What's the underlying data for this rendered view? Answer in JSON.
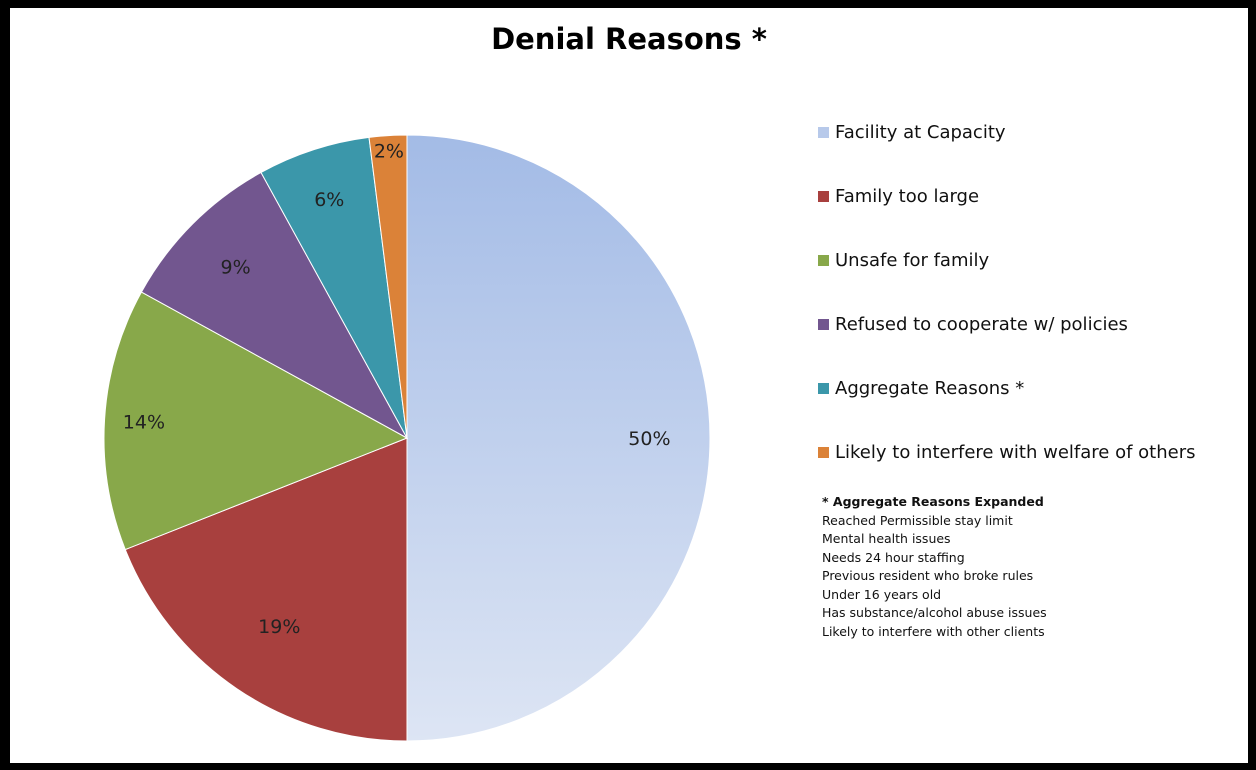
{
  "chart_data": {
    "type": "pie",
    "title": "Denial Reasons *",
    "categories": [
      "Facility at Capacity",
      "Family too large",
      "Unsafe for family",
      "Refused to cooperate w/ policies",
      "Aggregate Reasons *",
      "Likely to interfere with welfare of others"
    ],
    "values": [
      50,
      19,
      14,
      9,
      6,
      2
    ],
    "data_labels": [
      "50%",
      "19%",
      "14%",
      "9%",
      "6%",
      "2%"
    ],
    "colors": [
      "#b7c9ea",
      "#a8403e",
      "#88a84a",
      "#72568f",
      "#3b97aa",
      "#db8238"
    ],
    "legend_position": "right"
  },
  "note": {
    "title": "* Aggregate Reasons Expanded",
    "lines": [
      "Reached Permissible stay limit",
      "Mental health issues",
      "Needs 24 hour staffing",
      "Previous resident who broke rules",
      "Under 16 years old",
      "Has substance/alcohol abuse issues",
      "Likely to interfere with other clients"
    ]
  }
}
